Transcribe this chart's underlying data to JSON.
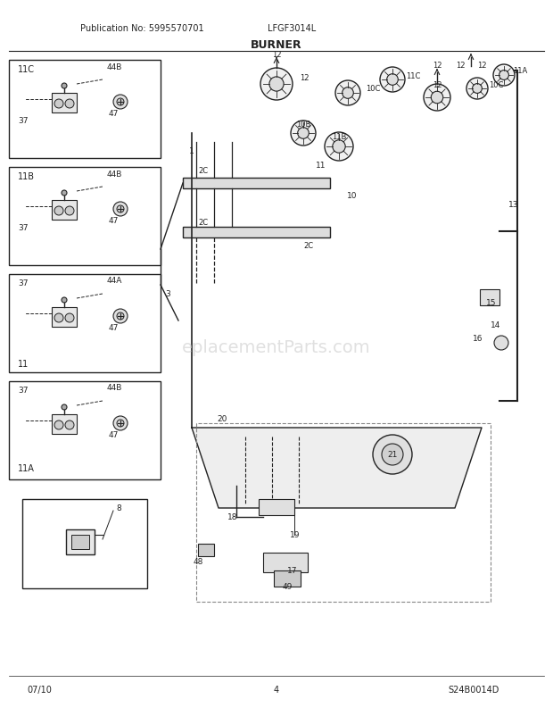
{
  "title": "BURNER",
  "pub_no": "Publication No: 5995570701",
  "model": "LFGF3014L",
  "date": "07/10",
  "page": "4",
  "diagram_id": "S24B0014D",
  "bg_color": "#ffffff",
  "line_color": "#222222",
  "text_color": "#222222",
  "border_color": "#333333",
  "fig_width": 6.2,
  "fig_height": 8.03,
  "dpi": 100
}
